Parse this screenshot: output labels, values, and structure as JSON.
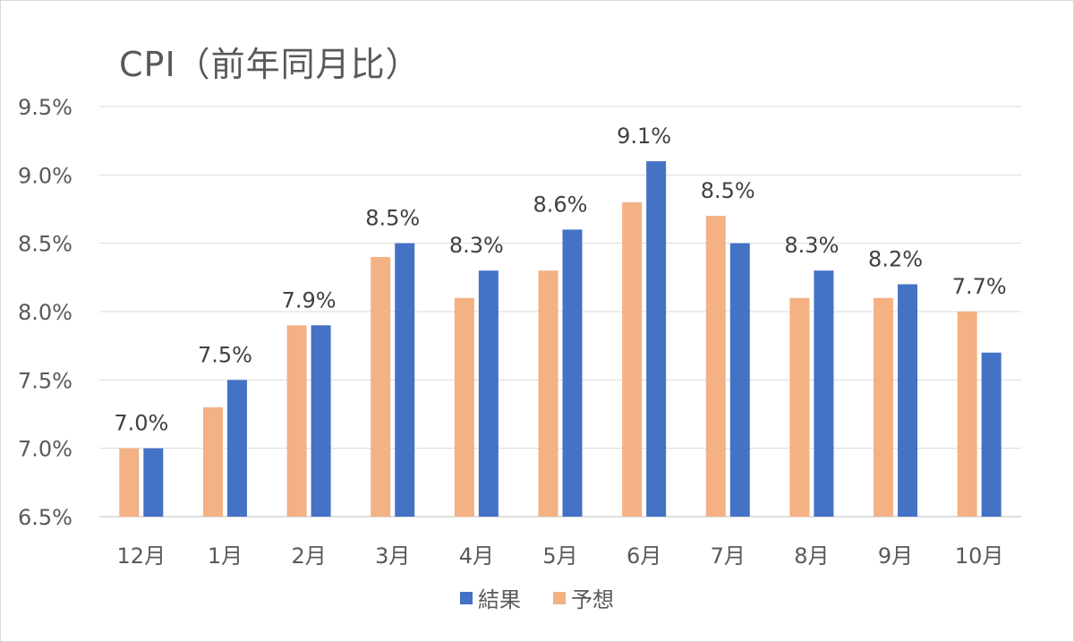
{
  "chart_data": {
    "type": "bar",
    "title": "CPI（前年同月比）",
    "categories": [
      "12月",
      "1月",
      "2月",
      "3月",
      "4月",
      "5月",
      "6月",
      "7月",
      "8月",
      "9月",
      "10月"
    ],
    "series": [
      {
        "name": "予想",
        "color": "#f4b183",
        "values": [
          7.0,
          7.3,
          7.9,
          8.4,
          8.1,
          8.3,
          8.8,
          8.7,
          8.1,
          8.1,
          8.0
        ]
      },
      {
        "name": "結果",
        "color": "#4472c4",
        "values": [
          7.0,
          7.5,
          7.9,
          8.5,
          8.3,
          8.6,
          9.1,
          8.5,
          8.3,
          8.2,
          7.7
        ]
      }
    ],
    "data_labels": {
      "series": "結果",
      "text": [
        "7.0%",
        "7.5%",
        "7.9%",
        "8.5%",
        "8.3%",
        "8.6%",
        "9.1%",
        "8.5%",
        "8.3%",
        "8.2%",
        "7.7%"
      ]
    },
    "yaxis": {
      "min": 6.5,
      "max": 9.5,
      "step": 0.5,
      "tick_labels": [
        "6.5%",
        "7.0%",
        "7.5%",
        "8.0%",
        "8.5%",
        "9.0%",
        "9.5%"
      ]
    },
    "legend": {
      "placement": "bottom",
      "order": [
        "結果",
        "予想"
      ]
    },
    "grid": true
  }
}
